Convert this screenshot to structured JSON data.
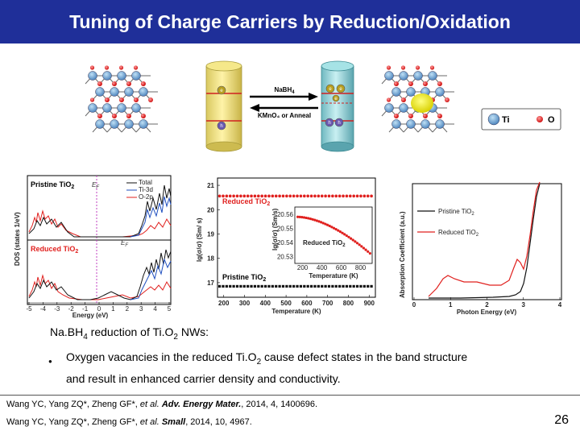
{
  "title": "Tuning of Charge Carriers by Reduction/Oxidation",
  "schematic": {
    "forward_label": "NaBH",
    "forward_sub": "4",
    "reverse_label": "KMnO₄ or Anneal",
    "legend_ti": "Ti",
    "legend_o": "O",
    "state_labels": [
      "e",
      "h",
      "e",
      "e",
      "e",
      "h",
      "h"
    ]
  },
  "dos": {
    "pristine_label": "Pristine TiO",
    "pristine_sub": "2",
    "reduced_label": "Reduced TiO",
    "reduced_sub": "2",
    "legend": [
      "Total",
      "Ti-3d",
      "O-2p"
    ],
    "ylabel": "DOS   (states 1/eV)",
    "xlabel": "Energy (eV)",
    "ef_label": "E",
    "ef_sub": "F",
    "xticks": [
      "-5",
      "-4",
      "-3",
      "-2",
      "-1",
      "0",
      "1",
      "2",
      "3",
      "4",
      "5"
    ]
  },
  "conductivity": {
    "ylabel": "lg(σ/σ) (Sm/ s)",
    "xlabel": "Temperature (K)",
    "yticks": [
      "21",
      "20",
      "19",
      "18",
      "17"
    ],
    "xticks": [
      "200",
      "300",
      "400",
      "500",
      "600",
      "700",
      "800",
      "900"
    ],
    "reduced_label": "Reduced TiO",
    "reduced_sub": "2",
    "pristine_label": "Pristine TiO",
    "pristine_sub": "2",
    "inset_ylabel": "lg(σ/σ) (Sm/s)",
    "inset_yticks": [
      "20.56",
      "20.55",
      "20.54",
      "20.53"
    ],
    "inset_xticks": [
      "200",
      "400",
      "600",
      "800"
    ],
    "inset_xlabel": "Temperature (K)",
    "inset_label": "Reduced TiO",
    "inset_sub": "2"
  },
  "absorption": {
    "ylabel": "Absorption Coefficient  (a.u.)",
    "xlabel": "Photon Energy  (eV)",
    "xticks": [
      "0",
      "1",
      "2",
      "3",
      "4"
    ],
    "pristine_label": "Pristine TiO",
    "pristine_sub": "2",
    "reduced_label": "Reduced TiO",
    "reduced_sub": "2"
  },
  "heading": {
    "pre": "Na.BH",
    "sub1": "4",
    "mid": " reduction of Ti.O",
    "sub2": "2",
    "post": " NWs:"
  },
  "bullet": {
    "marker": "●",
    "line1_pre": "Oxygen vacancies in the reduced Ti.O",
    "line1_sub": "2",
    "line1_post": " cause defect states in the band structure",
    "line2": "and result in enhanced carrier density and conductivity."
  },
  "references": [
    {
      "authors": "Wang YC, Yang ZQ*, Zheng GF*, ",
      "etal": "et al.",
      "journal": "Adv. Energy Mater.",
      "rest": ", 2014, 4, 1400696."
    },
    {
      "authors": "Wang YC, Yang ZQ*, Zheng GF*, ",
      "etal": "et al.",
      "journal": "Small",
      "rest": ", 2014, 10, 4967."
    }
  ],
  "page_number": "26",
  "colors": {
    "title_bg": "#1f2f99",
    "red": "#e0201e",
    "blue": "#1f4fbf",
    "lattice": "#5b8fc4",
    "oxygen": "#e02020"
  }
}
